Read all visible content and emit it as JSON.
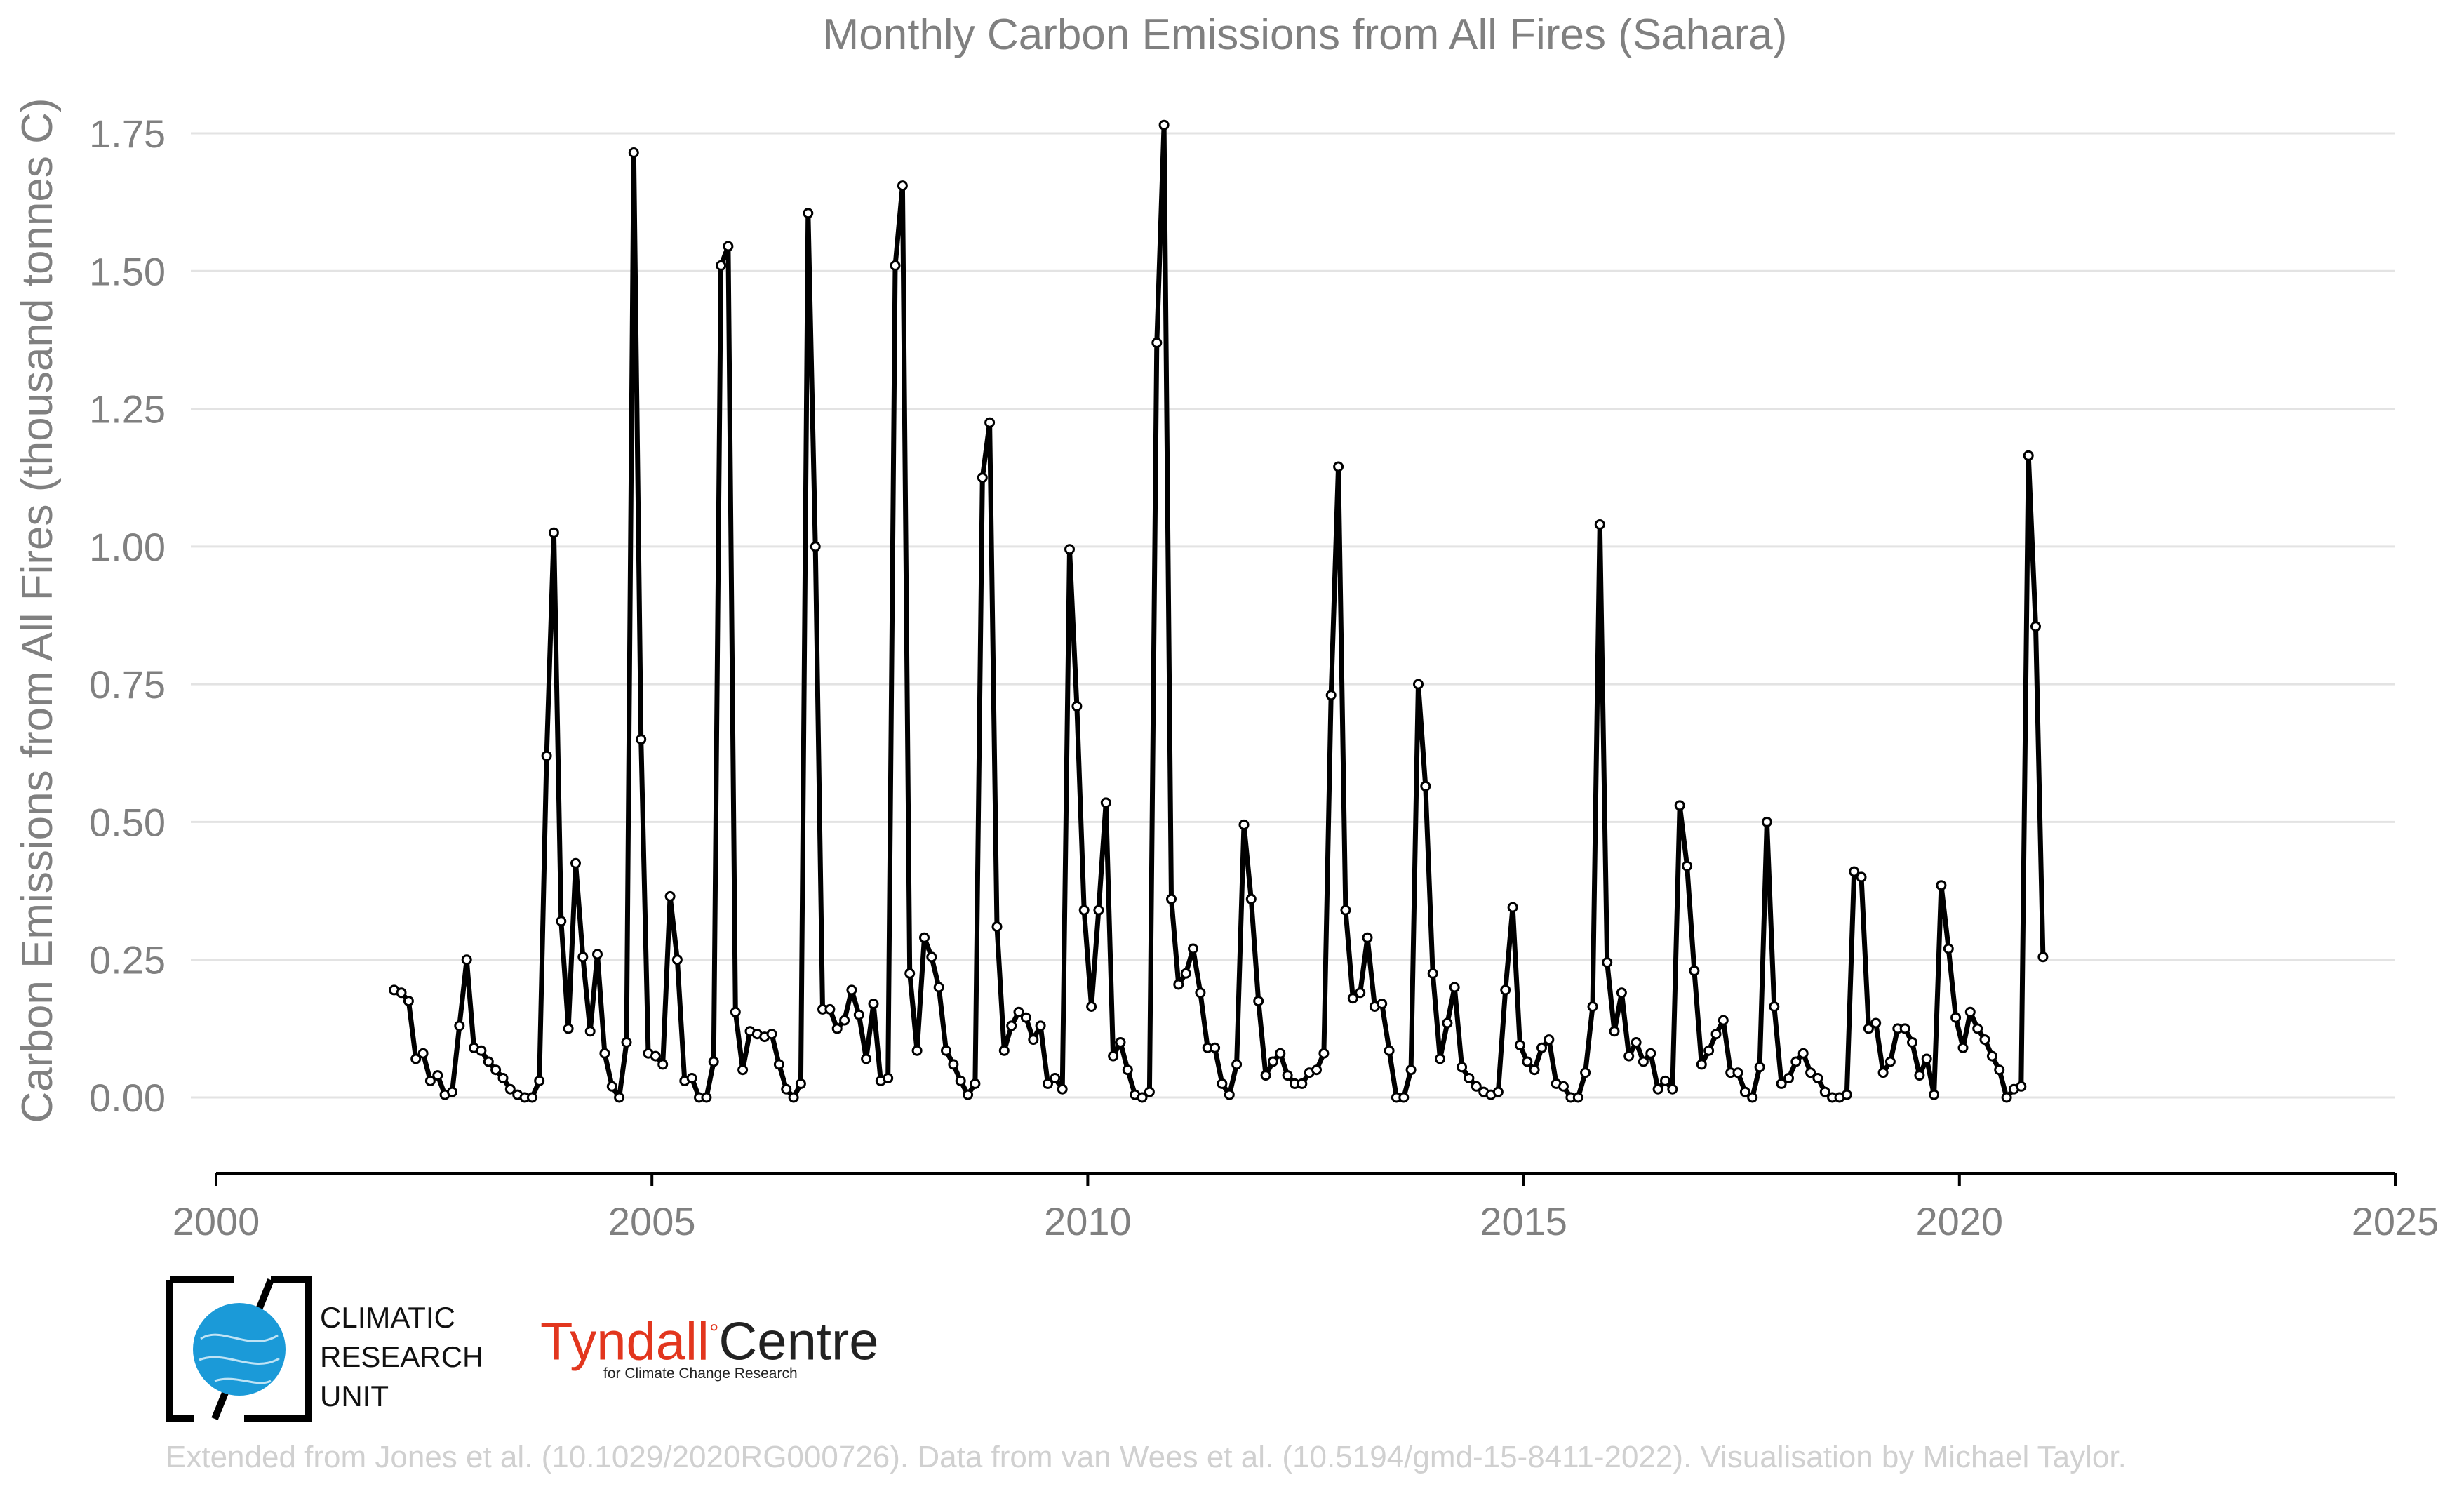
{
  "chart_data": {
    "type": "line",
    "title": "Monthly Carbon Emissions from All Fires (Sahara)",
    "ylabel": "Carbon Emissions from All Fires (thousand tonnes C)",
    "xlabel": "",
    "xlim": [
      2000,
      2025
    ],
    "ylim": [
      -0.14,
      1.78
    ],
    "x_ticks": [
      "2000",
      "2005",
      "2010",
      "2015",
      "2020",
      "2025"
    ],
    "y_ticks": [
      "0.00",
      "0.25",
      "0.50",
      "0.75",
      "1.00",
      "1.25",
      "1.50",
      "1.75"
    ],
    "y_tick_values": [
      0,
      0.25,
      0.5,
      0.75,
      1.0,
      1.25,
      1.5,
      1.75
    ],
    "grid": "horizontal",
    "series": [
      {
        "start": "2002-01",
        "frequency": "monthly",
        "color": "#000000",
        "values": [
          0.195,
          0.19,
          0.175,
          0.07,
          0.08,
          0.03,
          0.04,
          0.005,
          0.01,
          0.13,
          0.25,
          0.09,
          0.085,
          0.065,
          0.05,
          0.035,
          0.015,
          0.005,
          0.0,
          0.0,
          0.03,
          0.62,
          1.025,
          0.32,
          0.125,
          0.425,
          0.255,
          0.12,
          0.26,
          0.08,
          0.02,
          0.0,
          0.1,
          1.715,
          0.65,
          0.08,
          0.075,
          0.06,
          0.365,
          0.25,
          0.03,
          0.035,
          0.0,
          0.0,
          0.065,
          1.51,
          1.545,
          0.155,
          0.05,
          0.12,
          0.115,
          0.11,
          0.115,
          0.06,
          0.015,
          0.0,
          0.025,
          1.605,
          1.0,
          0.16,
          0.16,
          0.125,
          0.14,
          0.195,
          0.15,
          0.07,
          0.17,
          0.03,
          0.035,
          1.51,
          1.655,
          0.225,
          0.085,
          0.29,
          0.255,
          0.2,
          0.085,
          0.06,
          0.03,
          0.005,
          0.025,
          1.125,
          1.225,
          0.31,
          0.085,
          0.13,
          0.155,
          0.145,
          0.105,
          0.13,
          0.025,
          0.035,
          0.015,
          0.995,
          0.71,
          0.34,
          0.165,
          0.34,
          0.535,
          0.075,
          0.1,
          0.05,
          0.005,
          0.0,
          0.01,
          1.37,
          1.765,
          0.36,
          0.205,
          0.225,
          0.27,
          0.19,
          0.09,
          0.09,
          0.025,
          0.005,
          0.06,
          0.495,
          0.36,
          0.175,
          0.04,
          0.065,
          0.08,
          0.04,
          0.025,
          0.025,
          0.045,
          0.05,
          0.08,
          0.73,
          1.145,
          0.34,
          0.18,
          0.19,
          0.29,
          0.165,
          0.17,
          0.085,
          0.0,
          0.0,
          0.05,
          0.75,
          0.565,
          0.225,
          0.07,
          0.135,
          0.2,
          0.055,
          0.035,
          0.02,
          0.01,
          0.005,
          0.01,
          0.195,
          0.345,
          0.095,
          0.065,
          0.05,
          0.09,
          0.105,
          0.025,
          0.02,
          0.0,
          0.0,
          0.045,
          0.165,
          1.04,
          0.245,
          0.12,
          0.19,
          0.075,
          0.1,
          0.065,
          0.08,
          0.015,
          0.03,
          0.015,
          0.53,
          0.42,
          0.23,
          0.06,
          0.085,
          0.115,
          0.14,
          0.045,
          0.045,
          0.01,
          0.0,
          0.055,
          0.5,
          0.165,
          0.025,
          0.035,
          0.065,
          0.08,
          0.045,
          0.035,
          0.01,
          0.0,
          0.0,
          0.005,
          0.41,
          0.4,
          0.125,
          0.135,
          0.045,
          0.065,
          0.125,
          0.125,
          0.1,
          0.04,
          0.07,
          0.005,
          0.385,
          0.27,
          0.145,
          0.09,
          0.155,
          0.125,
          0.105,
          0.075,
          0.05,
          0.0,
          0.015,
          0.02,
          1.165,
          0.855,
          0.255
        ]
      }
    ]
  },
  "logos": {
    "cru_lines": [
      "CLIMATIC",
      "RESEARCH",
      "UNIT"
    ],
    "tyndall_word": "Tyndall",
    "tyndall_degree": "°",
    "tyndall_centre": "Centre",
    "tyndall_sub": "for Climate Change Research",
    "cru_blue": "#1b9ad8",
    "tyndall_red": "#e2361e"
  },
  "credit": "Extended from Jones et al. (10.1029/2020RG000726). Data from van Wees et al. (10.5194/gmd-15-8411-2022). Visualisation by Michael Taylor."
}
